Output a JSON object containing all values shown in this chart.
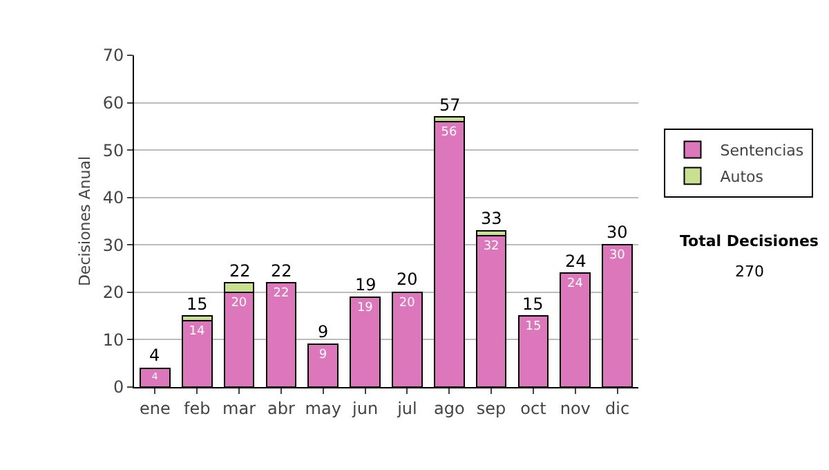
{
  "chart_data": {
    "type": "bar",
    "ylabel": "Decisiones Anual",
    "categories": [
      "ene",
      "feb",
      "mar",
      "abr",
      "may",
      "jun",
      "jul",
      "ago",
      "sep",
      "oct",
      "nov",
      "dic"
    ],
    "stacked": true,
    "series": [
      {
        "name": "Sentencias",
        "color": "#dd77bb",
        "values": [
          4,
          14,
          20,
          22,
          9,
          19,
          20,
          56,
          32,
          15,
          24,
          30
        ],
        "value_labels": [
          "4",
          "14",
          "20",
          "22",
          "9",
          "19",
          "20",
          "56",
          "32",
          "15",
          "24",
          "30"
        ]
      },
      {
        "name": "Autos",
        "color": "#c8e090",
        "values": [
          null,
          1,
          2,
          null,
          null,
          null,
          null,
          1,
          1,
          null,
          null,
          null
        ]
      }
    ],
    "totals": [
      "4",
      "15",
      "22",
      "22",
      "9",
      "19",
      "20",
      "57",
      "33",
      "15",
      "24",
      "30"
    ],
    "ylim": [
      0,
      70
    ],
    "yticks": [
      0,
      10,
      20,
      30,
      40,
      50,
      60,
      70
    ],
    "grid": "y",
    "legend": "right",
    "annotations": [
      "Total Decisiones",
      "270"
    ]
  }
}
